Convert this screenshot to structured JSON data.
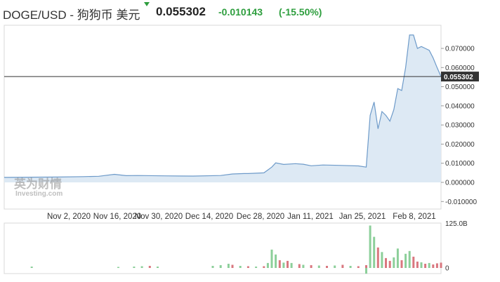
{
  "header": {
    "title": "DOGE/USD - 狗狗币 美元",
    "price": "0.055302",
    "change": "-0.010143",
    "change_pct": "(-15.50%)"
  },
  "watermark": {
    "chinese": "英为财情",
    "english": "Investing.com"
  },
  "colors": {
    "up": "#2e9e3e",
    "up_bar": "#8ccf9a",
    "down_bar": "#d9777f",
    "line": "#6d9ac9",
    "area": "#dde9f4",
    "price_tag": "#333333"
  },
  "price_axis": {
    "ticks": [
      "0.070000",
      "0.060000",
      "0.050000",
      "0.040000",
      "0.030000",
      "0.020000",
      "0.010000",
      "0.000000",
      "-0.010000"
    ],
    "current_label": "0.055302"
  },
  "volume_axis": {
    "top_label": "125.0B",
    "zero_label": "0"
  },
  "date_labels": [
    "Nov 2, 2020",
    "Nov 16, 2020",
    "Nov 30, 2020",
    "Dec 14, 2020",
    "Dec 28, 2020",
    "Jan 11, 2021",
    "Jan 25, 2021",
    "Feb 8, 2021"
  ],
  "chart_data": {
    "type": "area",
    "title": "DOGE/USD - 狗狗币 美元",
    "y_range": [
      -0.01,
      0.075
    ],
    "current_value": 0.055302,
    "grid": false,
    "series": [
      {
        "name": "DOGE/USD",
        "points": [
          [
            "Oct 27, 2020",
            0.0026
          ],
          [
            "Nov 2, 2020",
            0.0027
          ],
          [
            "Nov 9, 2020",
            0.0028
          ],
          [
            "Nov 16, 2020",
            0.003
          ],
          [
            "Nov 20, 2020",
            0.0032
          ],
          [
            "Nov 24, 2020",
            0.0042
          ],
          [
            "Nov 27, 2020",
            0.0035
          ],
          [
            "Nov 30, 2020",
            0.0036
          ],
          [
            "Dec 7, 2020",
            0.0034
          ],
          [
            "Dec 14, 2020",
            0.0033
          ],
          [
            "Dec 21, 2020",
            0.0036
          ],
          [
            "Dec 24, 2020",
            0.0044
          ],
          [
            "Dec 27, 2020",
            0.0046
          ],
          [
            "Dec 28, 2020",
            0.0046
          ],
          [
            "Jan 1, 2021",
            0.005
          ],
          [
            "Jan 3, 2021",
            0.008
          ],
          [
            "Jan 4, 2021",
            0.0102
          ],
          [
            "Jan 6, 2021",
            0.0094
          ],
          [
            "Jan 9, 2021",
            0.0098
          ],
          [
            "Jan 11, 2021",
            0.0095
          ],
          [
            "Jan 13, 2021",
            0.0087
          ],
          [
            "Jan 16, 2021",
            0.0091
          ],
          [
            "Jan 20, 2021",
            0.0089
          ],
          [
            "Jan 25, 2021",
            0.0086
          ],
          [
            "Jan 27, 2021",
            0.008
          ],
          [
            "Jan 28, 2021",
            0.035
          ],
          [
            "Jan 29, 2021",
            0.042
          ],
          [
            "Jan 30, 2021",
            0.028
          ],
          [
            "Jan 31, 2021",
            0.037
          ],
          [
            "Feb 1, 2021",
            0.035
          ],
          [
            "Feb 2, 2021",
            0.032
          ],
          [
            "Feb 3, 2021",
            0.038
          ],
          [
            "Feb 4, 2021",
            0.049
          ],
          [
            "Feb 5, 2021",
            0.048
          ],
          [
            "Feb 6, 2021",
            0.06
          ],
          [
            "Feb 7, 2021",
            0.077
          ],
          [
            "Feb 8, 2021",
            0.077
          ],
          [
            "Feb 9, 2021",
            0.07
          ],
          [
            "Feb 10, 2021",
            0.071
          ],
          [
            "Feb 11, 2021",
            0.07
          ],
          [
            "Feb 12, 2021",
            0.069
          ],
          [
            "Feb 13, 2021",
            0.065
          ],
          [
            "Feb 14, 2021",
            0.06
          ],
          [
            "Feb 15, 2021",
            0.0553
          ]
        ]
      }
    ],
    "volume": {
      "y_range": [
        0,
        125
      ],
      "unit": "B",
      "bars": [
        [
          "Nov 3, 2020",
          4,
          "up"
        ],
        [
          "Nov 25, 2020",
          3,
          "up"
        ],
        [
          "Nov 29, 2020",
          4,
          "up"
        ],
        [
          "Dec 1, 2020",
          5,
          "up"
        ],
        [
          "Dec 3, 2020",
          6,
          "down"
        ],
        [
          "Dec 5, 2020",
          4,
          "up"
        ],
        [
          "Dec 19, 2020",
          6,
          "up"
        ],
        [
          "Dec 21, 2020",
          8,
          "up"
        ],
        [
          "Dec 23, 2020",
          12,
          "up"
        ],
        [
          "Dec 24, 2020",
          9,
          "down"
        ],
        [
          "Dec 26, 2020",
          6,
          "up"
        ],
        [
          "Dec 28, 2020",
          5,
          "down"
        ],
        [
          "Dec 30, 2020",
          4,
          "up"
        ],
        [
          "Jan 1, 2021",
          5,
          "down"
        ],
        [
          "Jan 2, 2021",
          14,
          "up"
        ],
        [
          "Jan 3, 2021",
          52,
          "up"
        ],
        [
          "Jan 4, 2021",
          38,
          "up"
        ],
        [
          "Jan 5, 2021",
          22,
          "down"
        ],
        [
          "Jan 6, 2021",
          15,
          "up"
        ],
        [
          "Jan 7, 2021",
          20,
          "down"
        ],
        [
          "Jan 8, 2021",
          14,
          "up"
        ],
        [
          "Jan 10, 2021",
          11,
          "down"
        ],
        [
          "Jan 11, 2021",
          9,
          "up"
        ],
        [
          "Jan 13, 2021",
          8,
          "down"
        ],
        [
          "Jan 15, 2021",
          7,
          "up"
        ],
        [
          "Jan 17, 2021",
          6,
          "down"
        ],
        [
          "Jan 19, 2021",
          7,
          "up"
        ],
        [
          "Jan 21, 2021",
          9,
          "down"
        ],
        [
          "Jan 23, 2021",
          6,
          "up"
        ],
        [
          "Jan 25, 2021",
          5,
          "down"
        ],
        [
          "Jan 27, 2021",
          8,
          "down"
        ],
        [
          "Jan 28, 2021",
          120,
          "up"
        ],
        [
          "Jan 29, 2021",
          88,
          "up"
        ],
        [
          "Jan 30, 2021",
          58,
          "down"
        ],
        [
          "Jan 31, 2021",
          45,
          "up"
        ],
        [
          "Feb 1, 2021",
          28,
          "down"
        ],
        [
          "Feb 2, 2021",
          20,
          "down"
        ],
        [
          "Feb 3, 2021",
          30,
          "up"
        ],
        [
          "Feb 4, 2021",
          55,
          "up"
        ],
        [
          "Feb 5, 2021",
          22,
          "down"
        ],
        [
          "Feb 6, 2021",
          40,
          "up"
        ],
        [
          "Feb 7, 2021",
          48,
          "up"
        ],
        [
          "Feb 8, 2021",
          32,
          "down"
        ],
        [
          "Feb 9, 2021",
          18,
          "down"
        ],
        [
          "Feb 10, 2021",
          16,
          "up"
        ],
        [
          "Feb 11, 2021",
          12,
          "down"
        ],
        [
          "Feb 12, 2021",
          14,
          "up"
        ],
        [
          "Feb 13, 2021",
          10,
          "down"
        ],
        [
          "Feb 14, 2021",
          13,
          "down"
        ],
        [
          "Feb 15, 2021",
          15,
          "down"
        ]
      ],
      "neg_bar": [
        "Jan 27, 2021",
        -18
      ]
    }
  }
}
